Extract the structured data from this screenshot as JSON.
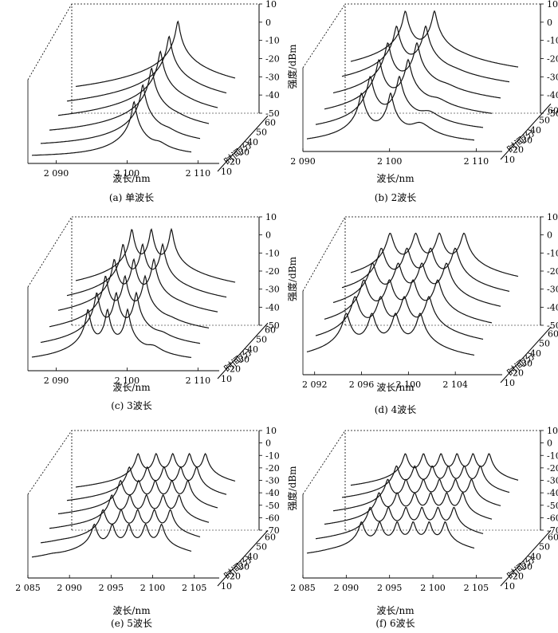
{
  "chart_data": [
    {
      "id": "a",
      "type": "line",
      "caption": "(a) 单波长",
      "xlabel": "波长/nm",
      "ylabel": "强度/dBm",
      "zlabel": "时间/分",
      "x_ticks": [
        "2 090",
        "2 100",
        "2 110"
      ],
      "x_tick_values": [
        2090,
        2100,
        2110
      ],
      "xlim": [
        2086,
        2113
      ],
      "y_ticks": [
        "10",
        "0",
        "-10",
        "-20",
        "-30",
        "-40",
        "-50"
      ],
      "ylim": [
        -50,
        10
      ],
      "z_ticks": [
        "10",
        "20",
        "30",
        "40",
        "50",
        "60"
      ],
      "z_values": [
        10,
        20,
        30,
        40,
        50,
        60
      ],
      "peaks_nm": [
        2103.3
      ],
      "peak_dbm": [
        -18,
        -14,
        -10,
        -6,
        -3,
        0
      ],
      "side_nm": [
        2107.5
      ],
      "side_dbm": -45,
      "noise_floor_dbm": -50
    },
    {
      "id": "b",
      "type": "line",
      "caption": "(b) 2波长",
      "xlabel": "波长/nm",
      "ylabel": "强度/dBm",
      "zlabel": "时间/分",
      "x_ticks": [
        "2 090",
        "2 100",
        "2 110"
      ],
      "x_tick_values": [
        2090,
        2100,
        2110
      ],
      "xlim": [
        2090,
        2113
      ],
      "y_ticks": [
        "10",
        "0",
        "-10",
        "-20",
        "-30",
        "-40",
        "-50"
      ],
      "ylim": [
        -50,
        10
      ],
      "z_ticks": [
        "10",
        "20",
        "30",
        "40",
        "50",
        "60"
      ],
      "z_values": [
        10,
        20,
        30,
        40,
        50,
        60
      ],
      "peaks_nm": [
        2097.5,
        2101.5
      ],
      "peak_dbm": [
        -20,
        -16,
        -12,
        -8,
        -4,
        -1
      ],
      "side_nm": [
        2105.5
      ],
      "side_dbm": -38,
      "noise_floor_dbm": -50
    },
    {
      "id": "c",
      "type": "line",
      "caption": "(c) 3波长",
      "xlabel": "波长/nm",
      "ylabel": "强度/dBm",
      "zlabel": "时间/分",
      "x_ticks": [
        "2 090",
        "2 100",
        "2 110"
      ],
      "x_tick_values": [
        2090,
        2100,
        2110
      ],
      "xlim": [
        2086,
        2113
      ],
      "y_ticks": [
        "10",
        "0",
        "-10",
        "-20",
        "-30",
        "-40",
        "-50"
      ],
      "ylim": [
        -50,
        10
      ],
      "z_ticks": [
        "10",
        "20",
        "30",
        "40",
        "50",
        "60"
      ],
      "z_values": [
        10,
        20,
        30,
        40,
        50,
        60
      ],
      "peaks_nm": [
        2095.5,
        2098.8,
        2102.2
      ],
      "peak_dbm": [
        -18,
        -14,
        -10,
        -6,
        -3,
        0
      ],
      "side_nm": [
        2106.5
      ],
      "side_dbm": -42,
      "noise_floor_dbm": -50
    },
    {
      "id": "d",
      "type": "line",
      "caption": "(d) 4波长",
      "xlabel": "波长/nm",
      "ylabel": "强度/dBm",
      "zlabel": "时间/分",
      "x_ticks": [
        "2 092",
        "2 096",
        "2 100",
        "2 104"
      ],
      "x_tick_values": [
        2092,
        2096,
        2100,
        2104
      ],
      "xlim": [
        2091,
        2108
      ],
      "y_ticks": [
        "10",
        "0",
        "-10",
        "-20",
        "-30",
        "-40",
        "-50"
      ],
      "ylim": [
        -50,
        10
      ],
      "z_ticks": [
        "10",
        "20",
        "30",
        "40",
        "50",
        "60"
      ],
      "z_values": [
        10,
        20,
        30,
        40,
        50,
        60
      ],
      "peaks_nm": [
        2095.0,
        2097.6,
        2100.0,
        2102.5
      ],
      "peak_dbm": [
        -18,
        -14,
        -10,
        -6,
        -3,
        0
      ],
      "side_nm": [],
      "side_dbm": -50,
      "noise_floor_dbm": -50
    },
    {
      "id": "e",
      "type": "line",
      "caption": "(e) 5波长",
      "xlabel": "波长/nm",
      "ylabel": "强度/dBm",
      "zlabel": "时间/分",
      "x_ticks": [
        "2 085",
        "2 090",
        "2 095",
        "2 100",
        "2 105"
      ],
      "x_tick_values": [
        2085,
        2090,
        2095,
        2100,
        2105
      ],
      "xlim": [
        2085,
        2108
      ],
      "y_ticks": [
        "10",
        "0",
        "-10",
        "-20",
        "-30",
        "-40",
        "-50",
        "-60",
        "-70"
      ],
      "ylim": [
        -70,
        10
      ],
      "z_ticks": [
        "10",
        "20",
        "30",
        "40",
        "50",
        "60"
      ],
      "z_values": [
        10,
        20,
        30,
        40,
        50,
        60
      ],
      "peaks_nm": [
        2094.0,
        2096.6,
        2099.0,
        2101.4,
        2103.7
      ],
      "peak_dbm": [
        -30,
        -26,
        -22,
        -18,
        -15,
        -12
      ],
      "side_nm": [
        2088.0,
        2106.5
      ],
      "side_dbm": -62,
      "noise_floor_dbm": -70
    },
    {
      "id": "f",
      "type": "line",
      "caption": "(f) 6波长",
      "xlabel": "波长/nm",
      "ylabel": "强度/dBm",
      "zlabel": "时间/分",
      "x_ticks": [
        "2 085",
        "2 090",
        "2 095",
        "2 100",
        "2 105"
      ],
      "x_tick_values": [
        2085,
        2090,
        2095,
        2100,
        2105
      ],
      "xlim": [
        2085,
        2108
      ],
      "y_ticks": [
        "10",
        "0",
        "-10",
        "-20",
        "-30",
        "-40",
        "-50",
        "-60",
        "-70"
      ],
      "ylim": [
        -70,
        10
      ],
      "z_ticks": [
        "10",
        "20",
        "30",
        "40",
        "50",
        "60"
      ],
      "z_values": [
        10,
        20,
        30,
        40,
        50,
        60
      ],
      "peaks_nm": [
        2092.5,
        2095.0,
        2097.4,
        2099.6,
        2101.8,
        2104.0
      ],
      "peak_dbm": [
        -28,
        -24,
        -20,
        -17,
        -14,
        -12
      ],
      "side_nm": [
        2088.5,
        2106.5
      ],
      "side_dbm": -62,
      "noise_floor_dbm": -70
    }
  ]
}
